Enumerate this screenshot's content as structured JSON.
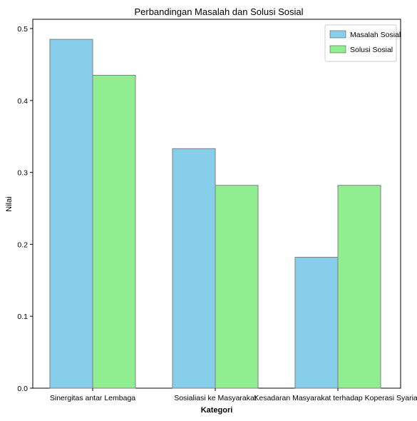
{
  "chart_data": {
    "type": "bar",
    "title": "Perbandingan Masalah dan Solusi Sosial",
    "xlabel": "Kategori",
    "ylabel": "Nilai",
    "categories": [
      "Sinergitas antar Lembaga",
      "Sosialiasi ke Masyarakat",
      "Kesadaran Masyarakat terhadap Koperasi Syariah"
    ],
    "series": [
      {
        "name": "Masalah Sosial",
        "color": "#87ceeb",
        "values": [
          0.485,
          0.333,
          0.182
        ]
      },
      {
        "name": "Solusi Sosial",
        "color": "#90ee90",
        "values": [
          0.435,
          0.282,
          0.282
        ]
      }
    ],
    "ylim": [
      0,
      0.5
    ],
    "yticks": [
      "0.0",
      "0.1",
      "0.2",
      "0.3",
      "0.4",
      "0.5"
    ],
    "grid": false,
    "legend_position": "top-right"
  }
}
